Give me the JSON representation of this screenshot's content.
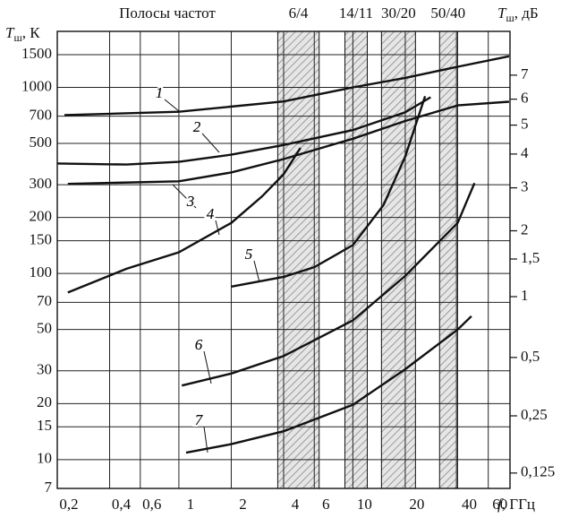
{
  "chart_data": {
    "type": "line",
    "header": "Полосы частот",
    "y_label": {
      "symbol": "T",
      "subscript": "ш",
      "unit": ", К"
    },
    "y2_label": {
      "symbol": "T",
      "subscript": "ш",
      "unit": ", дБ"
    },
    "x_label": {
      "symbol": "f",
      "unit": ", ГГц"
    },
    "log_x": true,
    "log_y": true,
    "grid": true,
    "color": "#111111",
    "xlim": [
      0.2,
      80
    ],
    "ylim": [
      7,
      2000
    ],
    "xticks": [
      {
        "value": 0.2,
        "label": "0,2"
      },
      {
        "value": 0.4,
        "label": "0,4"
      },
      {
        "value": 0.6,
        "label": "0,6"
      },
      1,
      2,
      4,
      6,
      10,
      20,
      40,
      60
    ],
    "yticks": [
      7,
      10,
      15,
      20,
      30,
      50,
      70,
      100,
      150,
      200,
      300,
      500,
      700,
      1000,
      1500
    ],
    "y2ticks": [
      7,
      6,
      5,
      4,
      3,
      2,
      {
        "value": 1.5,
        "label": "1,5"
      },
      1,
      {
        "value": 0.5,
        "label": "0,5"
      },
      {
        "value": 0.25,
        "label": "0,25"
      },
      {
        "value": 0.125,
        "label": "0,125"
      }
    ],
    "bands": [
      {
        "label": "6/4",
        "from": 3.7,
        "to": 6.4
      },
      {
        "label": "14/11",
        "from": 9.0,
        "to": 12.1
      },
      {
        "label": "30/20",
        "from": 14.6,
        "to": 22.9
      },
      {
        "label": "50/40",
        "from": 31.5,
        "to": 39.4
      }
    ],
    "series": [
      {
        "name": "1",
        "x": [
          0.22,
          1,
          4,
          10,
          20,
          40,
          79
        ],
        "values": [
          710,
          740,
          840,
          1000,
          1125,
          1290,
          1470
        ]
      },
      {
        "name": "2",
        "x": [
          0.2,
          0.5,
          1,
          2,
          4,
          10,
          20,
          28
        ],
        "values": [
          390,
          385,
          398,
          435,
          490,
          590,
          735,
          885
        ]
      },
      {
        "name": "3",
        "x": [
          0.23,
          1,
          2,
          4,
          10,
          20,
          40,
          79
        ],
        "values": [
          303,
          313,
          349,
          412,
          530,
          660,
          800,
          838
        ]
      },
      {
        "name": "4",
        "x": [
          0.23,
          0.5,
          1,
          2,
          3,
          4,
          5
        ],
        "values": [
          79,
          106,
          130,
          187,
          259,
          341,
          473
        ]
      },
      {
        "name": "5",
        "x": [
          2,
          4,
          6,
          10,
          15,
          20,
          26
        ],
        "values": [
          85,
          96,
          108,
          142,
          233,
          425,
          896
        ]
      },
      {
        "name": "6",
        "x": [
          1.04,
          2,
          4,
          10,
          20,
          40,
          50
        ],
        "values": [
          25,
          29,
          36,
          56,
          97,
          187,
          306
        ]
      },
      {
        "name": "7",
        "x": [
          1.1,
          2,
          4,
          10,
          20,
          40,
          48
        ],
        "values": [
          10.9,
          12.1,
          14.2,
          19.7,
          30.6,
          50,
          59
        ]
      }
    ]
  }
}
